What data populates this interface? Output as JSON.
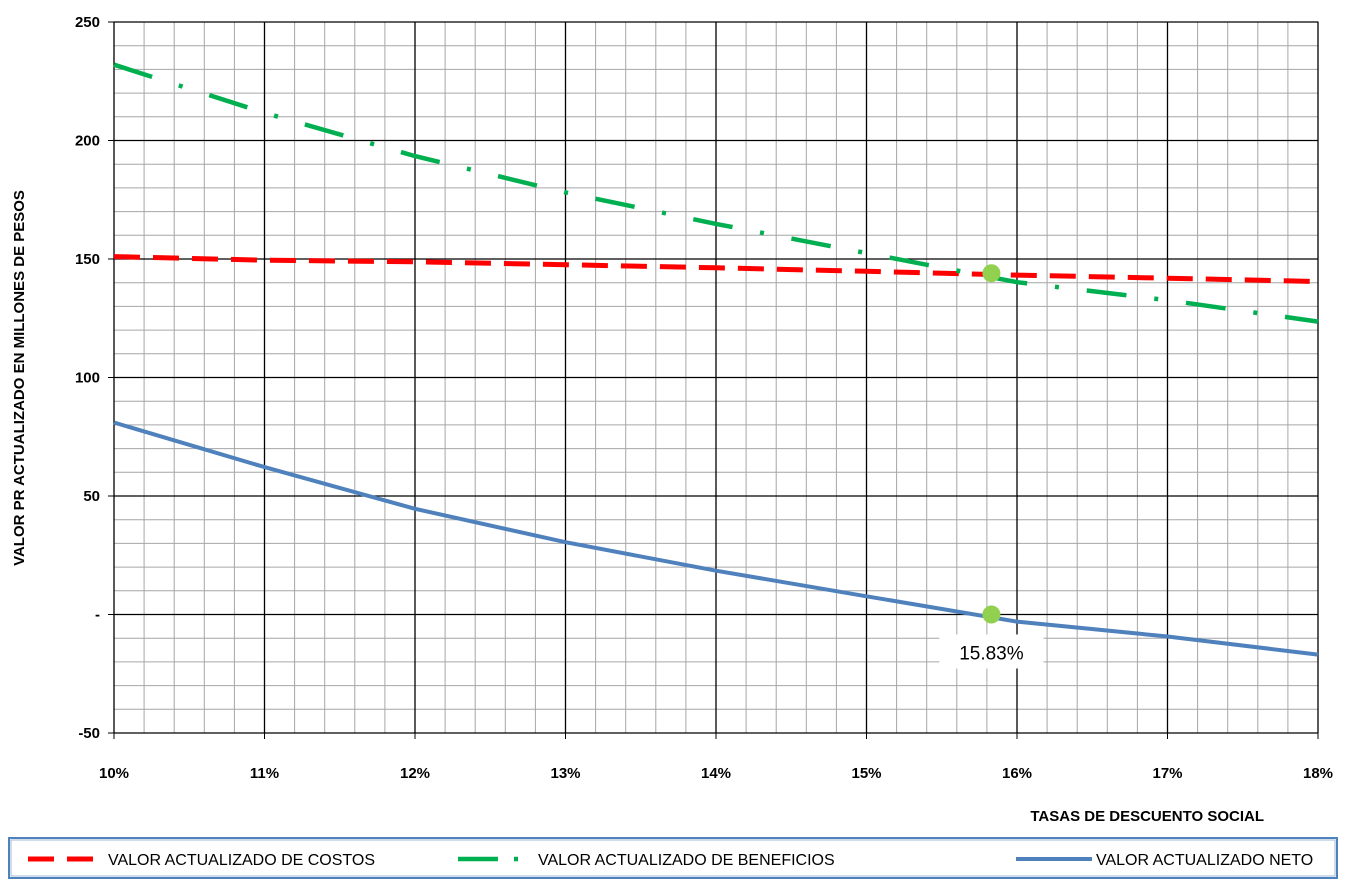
{
  "chart_data": {
    "type": "line",
    "title": "",
    "xlabel": "TASAS DE DESCUENTO SOCIAL",
    "ylabel": "VALOR PR ACTUALIZADO EN MILLONES DE PESOS",
    "xlim": [
      0.1,
      0.18
    ],
    "ylim": [
      -50,
      250
    ],
    "x_tick_labels": [
      "10%",
      "11%",
      "12%",
      "13%",
      "14%",
      "15%",
      "16%",
      "17%",
      "18%"
    ],
    "y_tick_labels": [
      "250",
      "200",
      "150",
      "100",
      "50",
      "-",
      "-50"
    ],
    "y_tick_values": [
      250,
      200,
      150,
      100,
      50,
      0,
      -50
    ],
    "grid": "on",
    "legend_position": "bottom",
    "x": [
      0.1,
      0.11,
      0.12,
      0.13,
      0.14,
      0.15,
      0.16,
      0.17,
      0.18
    ],
    "series": [
      {
        "name": "VALOR ACTUALIZADO DE COSTOS",
        "color": "#FF0000",
        "style": "dashed",
        "values": [
          151,
          149.5,
          148.8,
          147.6,
          146.3,
          144.8,
          143.2,
          141.9,
          140.5
        ]
      },
      {
        "name": "VALOR ACTUALIZADO DE BENEFICIOS",
        "color": "#00B050",
        "style": "dash-dot",
        "values": [
          232,
          211.7,
          193.4,
          178.1,
          164.8,
          152.5,
          140.2,
          132.6,
          123.6
        ]
      },
      {
        "name": "VALOR ACTUALIZADO NETO",
        "color": "#4F81BD",
        "style": "solid",
        "values": [
          81,
          62.2,
          44.6,
          30.5,
          18.5,
          7.7,
          -3.0,
          -9.3,
          -16.9
        ]
      }
    ],
    "annotations": [
      {
        "text": "15.83%",
        "x": 0.1583,
        "y": 0
      }
    ],
    "markers": [
      {
        "x": 0.1583,
        "y": 144,
        "color": "#92D050"
      },
      {
        "x": 0.1583,
        "y": 0,
        "color": "#92D050"
      }
    ]
  }
}
